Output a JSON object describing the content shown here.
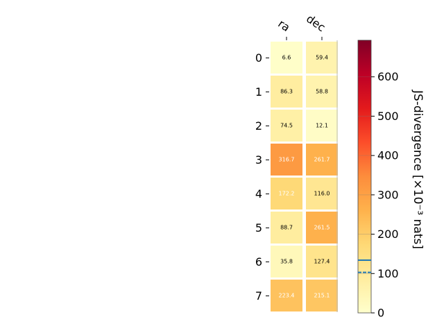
{
  "chart_data": {
    "type": "heatmap",
    "columns": [
      "ra",
      "dec"
    ],
    "rows": [
      "0",
      "1",
      "2",
      "3",
      "4",
      "5",
      "6",
      "7"
    ],
    "values": [
      [
        6.6,
        59.4
      ],
      [
        86.3,
        58.8
      ],
      [
        74.5,
        12.1
      ],
      [
        316.7,
        261.7
      ],
      [
        172.2,
        116.0
      ],
      [
        88.7,
        261.5
      ],
      [
        35.8,
        127.4
      ],
      [
        223.4,
        215.1
      ]
    ],
    "value_labels": [
      [
        "6.6",
        "59.4"
      ],
      [
        "86.3",
        "58.8"
      ],
      [
        "74.5",
        "12.1"
      ],
      [
        "316.7",
        "261.7"
      ],
      [
        "172.2",
        "116.0"
      ],
      [
        "88.7",
        "261.5"
      ],
      [
        "35.8",
        "127.4"
      ],
      [
        "223.4",
        "215.1"
      ]
    ],
    "colormap": "YlOrRd",
    "colorbar": {
      "label": "JS-divergence [×10⁻³ nats]",
      "range": [
        0,
        693
      ],
      "ticks": [
        0,
        100,
        200,
        300,
        400,
        500,
        600
      ],
      "tick_labels": [
        "0",
        "100",
        "200",
        "300",
        "400",
        "500",
        "600"
      ],
      "markers": [
        {
          "value": 134,
          "style": "solid",
          "color": "#1f77b4"
        },
        {
          "value": 103,
          "style": "dashed",
          "color": "#1f77b4"
        }
      ]
    }
  }
}
